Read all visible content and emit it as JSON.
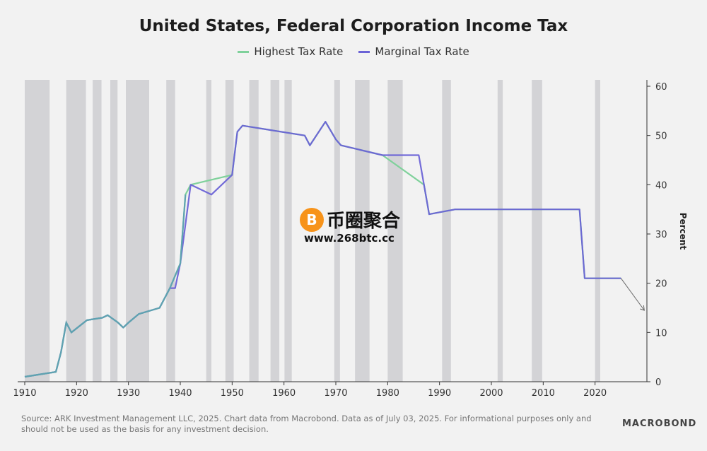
{
  "chart_data": {
    "type": "line",
    "title": "United States, Federal Corporation Income Tax",
    "ylabel": "Percent",
    "xlim": [
      1910,
      2030
    ],
    "ylim": [
      0,
      60
    ],
    "xticks": [
      1910,
      1920,
      1930,
      1940,
      1950,
      1960,
      1970,
      1980,
      1990,
      2000,
      2010,
      2020
    ],
    "yticks": [
      0,
      10,
      20,
      30,
      40,
      50,
      60
    ],
    "legend_position": "top-center",
    "grid": false,
    "series": [
      {
        "name": "Highest Tax Rate",
        "color": "#7fd19b",
        "x": [
          1910,
          1916,
          1917,
          1918,
          1919,
          1922,
          1925,
          1926,
          1928,
          1929,
          1930,
          1932,
          1936,
          1938,
          1940,
          1941,
          1942,
          1950,
          1951,
          1952,
          1964,
          1965,
          1968,
          1970,
          1971,
          1979,
          1987,
          1988,
          1993,
          2017,
          2018,
          2025
        ],
        "y": [
          1,
          2,
          6,
          12,
          10,
          12.5,
          13,
          13.5,
          12,
          11,
          12,
          13.75,
          15,
          19,
          24,
          38,
          40,
          42,
          50.75,
          52,
          50,
          48,
          52.8,
          49.2,
          48,
          46,
          40,
          34,
          35,
          35,
          21,
          21
        ]
      },
      {
        "name": "Marginal Tax Rate",
        "color": "#6b63d6",
        "x": [
          1910,
          1916,
          1917,
          1918,
          1919,
          1922,
          1925,
          1926,
          1928,
          1929,
          1930,
          1932,
          1936,
          1938,
          1939,
          1940,
          1942,
          1946,
          1950,
          1951,
          1952,
          1964,
          1965,
          1968,
          1970,
          1971,
          1979,
          1986,
          1987,
          1988,
          1993,
          2017,
          2018,
          2025
        ],
        "y": [
          1,
          2,
          6,
          12,
          10,
          12.5,
          13,
          13.5,
          12,
          11,
          12,
          13.75,
          15,
          19,
          19,
          24,
          40,
          38,
          42,
          50.75,
          52,
          50,
          48,
          52.8,
          49.2,
          48,
          46,
          46,
          40,
          34,
          35,
          35,
          21,
          21
        ]
      }
    ],
    "recessions": [
      [
        1910,
        1914.8
      ],
      [
        1918,
        1921.8
      ],
      [
        1923.1,
        1924.8
      ],
      [
        1926.5,
        1927.9
      ],
      [
        1929.5,
        1934
      ],
      [
        1937.3,
        1939
      ],
      [
        1945,
        1946
      ],
      [
        1948.7,
        1950.3
      ],
      [
        1953.3,
        1955.1
      ],
      [
        1957.4,
        1959.1
      ],
      [
        1960.1,
        1961.5
      ],
      [
        1969.7,
        1970.8
      ],
      [
        1973.7,
        1976.5
      ],
      [
        1980,
        1982.9
      ],
      [
        1990.5,
        1992.2
      ],
      [
        2001.2,
        2002.2
      ],
      [
        2007.8,
        2009.8
      ],
      [
        2020,
        2021
      ]
    ],
    "annotation": "arrow pointing downward after 2025"
  },
  "source_note": "Source: ARK Investment Management LLC, 2025. Chart data from Macrobond. Data as of July 03, 2025. For informational purposes only and should not be used as the basis for any investment decision.",
  "logo_text": "MACROBOND",
  "watermark": {
    "coin_symbol": "B",
    "name": "币圈聚合",
    "url": "www.268btc.cc"
  }
}
